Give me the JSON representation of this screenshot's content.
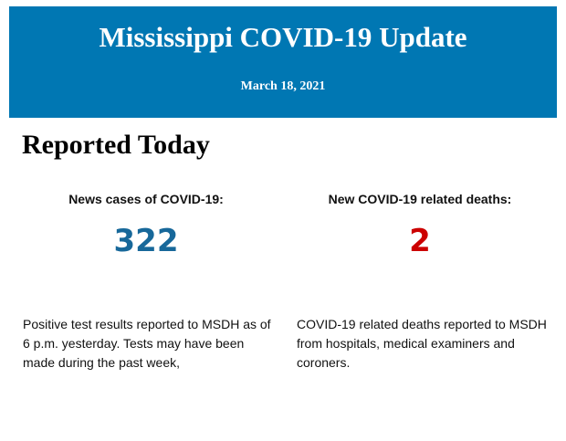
{
  "header": {
    "title": "Mississippi COVID-19 Update",
    "date": "March 18, 2021"
  },
  "section_title": "Reported Today",
  "cases": {
    "label": "News cases of COVID-19:",
    "value": "322",
    "description": "Positive test results reported to MSDH as of 6 p.m. yesterday. Tests may have been made during the past week,"
  },
  "deaths": {
    "label": "New COVID-19 related deaths:",
    "value": "2",
    "description": "COVID-19 related deaths reported to MSDH from hospitals, medical examiners and coroners."
  },
  "colors": {
    "banner": "#0077b3",
    "cases_value": "#17689a",
    "deaths_value": "#cc0000"
  }
}
